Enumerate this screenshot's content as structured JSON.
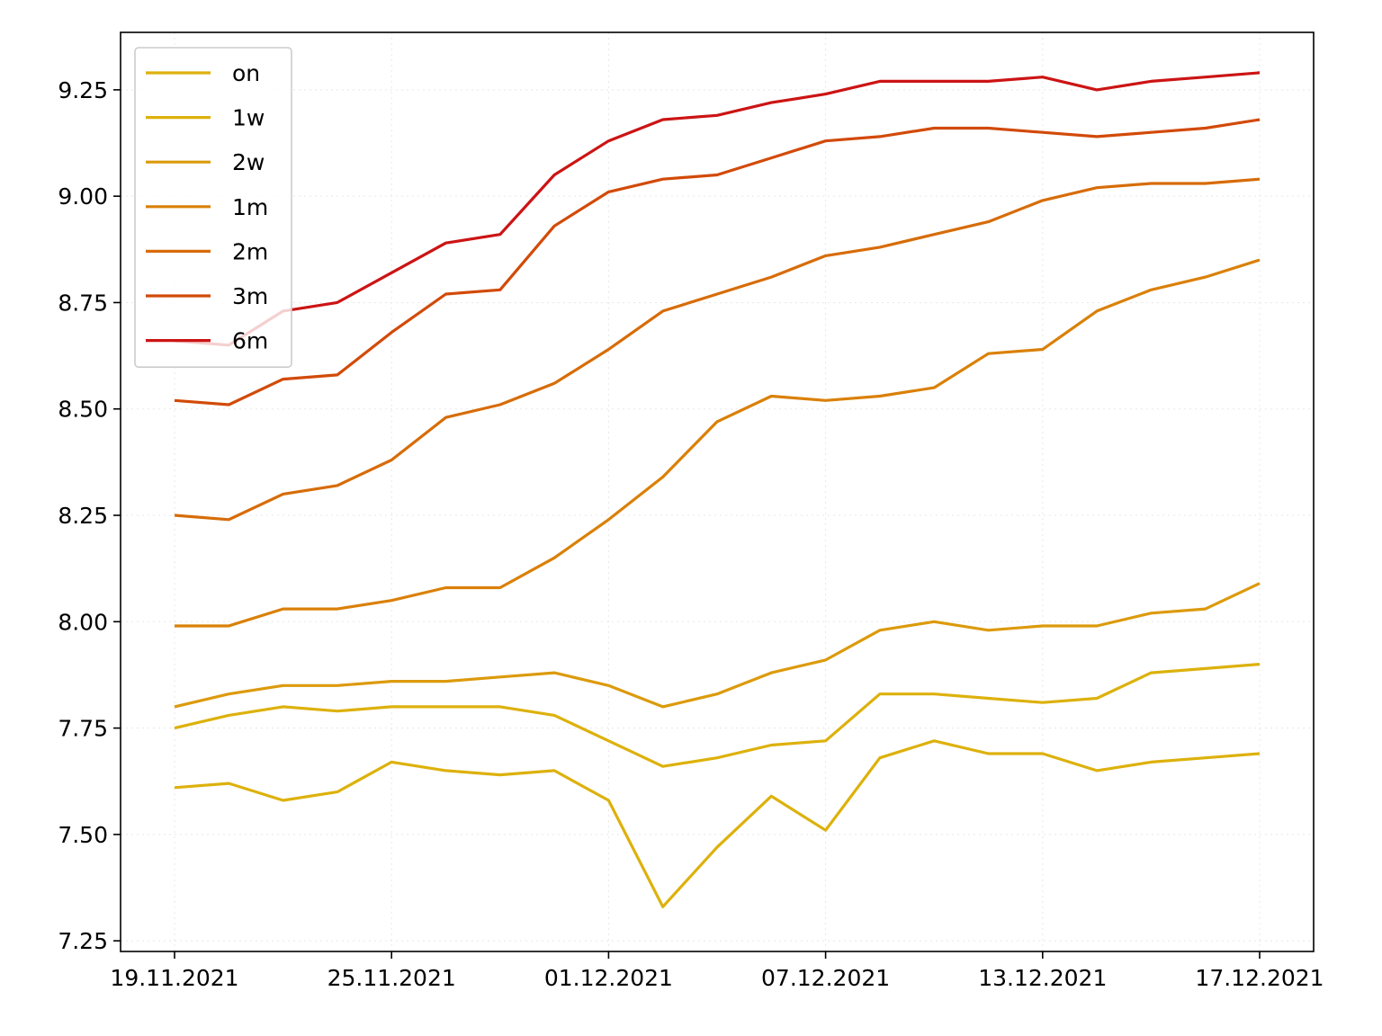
{
  "chart_data": {
    "type": "line",
    "title": "",
    "xlabel": "",
    "ylabel": "",
    "x": [
      "19.11.2021",
      "22.11.2021",
      "23.11.2021",
      "24.11.2021",
      "25.11.2021",
      "26.11.2021",
      "29.11.2021",
      "30.11.2021",
      "01.12.2021",
      "02.12.2021",
      "03.12.2021",
      "06.12.2021",
      "07.12.2021",
      "08.12.2021",
      "09.12.2021",
      "10.12.2021",
      "13.12.2021",
      "14.12.2021",
      "15.12.2021",
      "16.12.2021",
      "17.12.2021"
    ],
    "x_tick_labels": [
      "19.11.2021",
      "25.11.2021",
      "01.12.2021",
      "07.12.2021",
      "13.12.2021",
      "17.12.2021"
    ],
    "ylim": [
      7.225,
      9.385
    ],
    "y_ticks": [
      "7.25",
      "7.50",
      "7.75",
      "8.00",
      "8.25",
      "8.50",
      "8.75",
      "9.00",
      "9.25"
    ],
    "grid": true,
    "legend_position": "top-left",
    "series": [
      {
        "name": "on",
        "color": "#DDB10C",
        "values": [
          7.61,
          7.62,
          7.58,
          7.6,
          7.67,
          7.65,
          7.64,
          7.65,
          7.58,
          7.33,
          7.47,
          7.59,
          7.51,
          7.68,
          7.72,
          7.69,
          7.69,
          7.65,
          7.67,
          7.68,
          7.69
        ]
      },
      {
        "name": "1w",
        "color": "#DDB10C",
        "values": [
          7.75,
          7.78,
          7.8,
          7.79,
          7.8,
          7.8,
          7.8,
          7.78,
          7.72,
          7.66,
          7.68,
          7.71,
          7.72,
          7.83,
          7.83,
          7.82,
          7.81,
          7.82,
          7.88,
          7.89,
          7.9
        ]
      },
      {
        "name": "2w",
        "color": "#DC9A0C",
        "values": [
          7.8,
          7.83,
          7.85,
          7.85,
          7.86,
          7.86,
          7.87,
          7.88,
          7.85,
          7.8,
          7.83,
          7.88,
          7.91,
          7.98,
          8.0,
          7.98,
          7.99,
          7.99,
          8.02,
          8.03,
          8.09
        ]
      },
      {
        "name": "1m",
        "color": "#DA8008",
        "values": [
          7.99,
          7.99,
          8.03,
          8.03,
          8.05,
          8.08,
          8.08,
          8.15,
          8.24,
          8.34,
          8.47,
          8.53,
          8.52,
          8.53,
          8.55,
          8.63,
          8.64,
          8.73,
          8.78,
          8.81,
          8.85
        ]
      },
      {
        "name": "2m",
        "color": "#D76C08",
        "values": [
          8.25,
          8.24,
          8.3,
          8.32,
          8.38,
          8.48,
          8.51,
          8.56,
          8.64,
          8.73,
          8.77,
          8.81,
          8.86,
          8.88,
          8.91,
          8.94,
          8.99,
          9.02,
          9.03,
          9.03,
          9.04
        ]
      },
      {
        "name": "3m",
        "color": "#D24A08",
        "values": [
          8.52,
          8.51,
          8.57,
          8.58,
          8.68,
          8.77,
          8.78,
          8.93,
          9.01,
          9.04,
          9.05,
          9.09,
          9.13,
          9.14,
          9.16,
          9.16,
          9.15,
          9.14,
          9.15,
          9.16,
          9.18
        ]
      },
      {
        "name": "6m",
        "color": "#CC1414",
        "values": [
          8.66,
          8.65,
          8.73,
          8.75,
          8.82,
          8.89,
          8.91,
          9.05,
          9.13,
          9.18,
          9.19,
          9.22,
          9.24,
          9.27,
          9.27,
          9.27,
          9.28,
          9.25,
          9.27,
          9.28,
          9.29
        ]
      }
    ]
  }
}
